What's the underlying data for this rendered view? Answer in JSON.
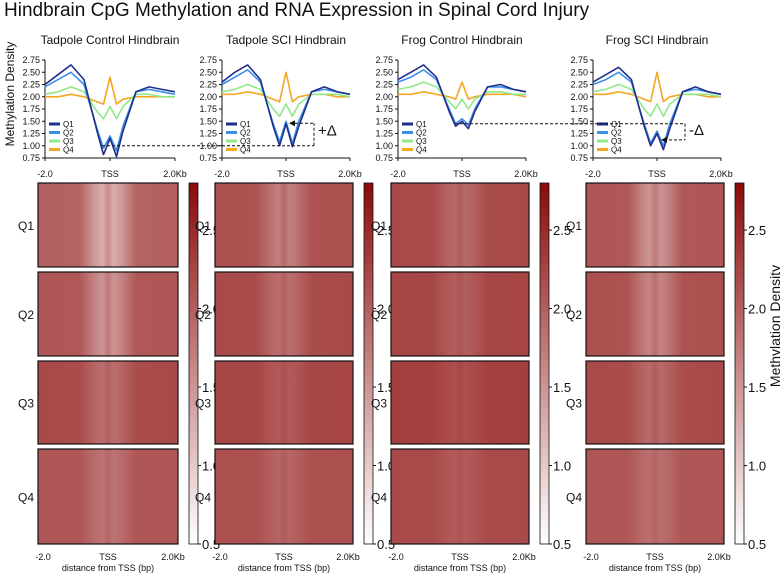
{
  "figure": {
    "title": "Hindbrain CpG Methylation and RNA Expression in Spinal Cord Injury",
    "profile_ylabel": "Methylation Density",
    "colorbar_label": "Methylation Density",
    "xlabel": "distance from TSS (bp)",
    "delta_plus": "+Δ",
    "delta_minus": "-Δ"
  },
  "colors": {
    "Q1": "#1f2f8c",
    "Q2": "#3d8ee6",
    "Q3": "#8fe88a",
    "Q4": "#f5a623",
    "heat_low": "#ffffff",
    "heat_high": "#8b0a0a"
  },
  "chart_data": [
    {
      "type": "line",
      "title": "Tadpole Control Hindbrain",
      "x": [
        -2.0,
        -1.6,
        -1.2,
        -0.8,
        -0.4,
        -0.2,
        0.0,
        0.2,
        0.4,
        0.8,
        1.2,
        1.6,
        2.0
      ],
      "x_ticks": [
        "-2.0",
        "TSS",
        "2.0Kb"
      ],
      "y_ticks": [
        "0.75",
        "1.00",
        "1.25",
        "1.50",
        "1.75",
        "2.00",
        "2.25",
        "2.50",
        "2.75"
      ],
      "ylim": [
        0.75,
        2.75
      ],
      "legend": "bottom-left",
      "series": [
        {
          "name": "Q1",
          "values": [
            2.25,
            2.45,
            2.65,
            2.35,
            1.3,
            0.82,
            1.15,
            0.78,
            1.3,
            2.1,
            2.2,
            2.15,
            2.1
          ]
        },
        {
          "name": "Q2",
          "values": [
            2.2,
            2.35,
            2.5,
            2.25,
            1.35,
            0.95,
            1.2,
            0.9,
            1.4,
            2.1,
            2.15,
            2.1,
            2.05
          ]
        },
        {
          "name": "Q3",
          "values": [
            2.05,
            2.1,
            2.2,
            2.1,
            1.7,
            1.55,
            1.8,
            1.55,
            1.8,
            2.05,
            2.05,
            2.0,
            2.0
          ]
        },
        {
          "name": "Q4",
          "values": [
            2.0,
            2.0,
            2.05,
            2.0,
            1.9,
            1.85,
            2.4,
            1.85,
            1.95,
            2.0,
            2.0,
            2.0,
            2.0
          ]
        }
      ]
    },
    {
      "type": "line",
      "title": "Tadpole SCI Hindbrain",
      "x": [
        -2.0,
        -1.6,
        -1.2,
        -0.8,
        -0.4,
        -0.2,
        0.0,
        0.2,
        0.4,
        0.8,
        1.2,
        1.6,
        2.0
      ],
      "x_ticks": [
        "-2.0",
        "TSS",
        "2.0Kb"
      ],
      "y_ticks": [
        "0.75",
        "1.00",
        "1.25",
        "1.50",
        "1.75",
        "2.00",
        "2.25",
        "2.50",
        "2.75"
      ],
      "ylim": [
        0.75,
        2.75
      ],
      "legend": "bottom-left",
      "series": [
        {
          "name": "Q1",
          "values": [
            2.3,
            2.5,
            2.65,
            2.35,
            1.4,
            1.0,
            1.45,
            0.98,
            1.4,
            2.1,
            2.2,
            2.1,
            2.05
          ]
        },
        {
          "name": "Q2",
          "values": [
            2.25,
            2.4,
            2.55,
            2.3,
            1.45,
            1.08,
            1.5,
            1.05,
            1.5,
            2.1,
            2.15,
            2.1,
            2.05
          ]
        },
        {
          "name": "Q3",
          "values": [
            2.1,
            2.15,
            2.25,
            2.15,
            1.75,
            1.6,
            1.85,
            1.6,
            1.85,
            2.05,
            2.05,
            2.05,
            2.0
          ]
        },
        {
          "name": "Q4",
          "values": [
            2.05,
            2.05,
            2.1,
            2.05,
            1.95,
            1.9,
            2.5,
            1.9,
            2.0,
            2.05,
            2.05,
            2.0,
            2.0
          ]
        }
      ]
    },
    {
      "type": "line",
      "title": "Frog Control Hindbrain",
      "x": [
        -2.0,
        -1.6,
        -1.2,
        -0.8,
        -0.4,
        -0.2,
        0.0,
        0.2,
        0.4,
        0.8,
        1.2,
        1.6,
        2.0
      ],
      "x_ticks": [
        "-2.0",
        "TSS",
        "2.0Kb"
      ],
      "y_ticks": [
        "0.75",
        "1.00",
        "1.25",
        "1.50",
        "1.75",
        "2.00",
        "2.25",
        "2.50",
        "2.75"
      ],
      "ylim": [
        0.75,
        2.75
      ],
      "legend": "bottom-left",
      "series": [
        {
          "name": "Q1",
          "values": [
            2.35,
            2.5,
            2.65,
            2.4,
            1.7,
            1.4,
            1.5,
            1.35,
            1.7,
            2.2,
            2.25,
            2.15,
            2.1
          ]
        },
        {
          "name": "Q2",
          "values": [
            2.3,
            2.4,
            2.55,
            2.35,
            1.75,
            1.45,
            1.55,
            1.42,
            1.75,
            2.2,
            2.2,
            2.15,
            2.1
          ]
        },
        {
          "name": "Q3",
          "values": [
            2.15,
            2.2,
            2.3,
            2.2,
            1.9,
            1.75,
            1.95,
            1.75,
            1.95,
            2.1,
            2.1,
            2.05,
            2.05
          ]
        },
        {
          "name": "Q4",
          "values": [
            2.05,
            2.05,
            2.1,
            2.05,
            2.0,
            1.95,
            2.3,
            1.95,
            2.0,
            2.05,
            2.05,
            2.05,
            2.0
          ]
        }
      ]
    },
    {
      "type": "line",
      "title": "Frog SCI Hindbrain",
      "x": [
        -2.0,
        -1.6,
        -1.2,
        -0.8,
        -0.4,
        -0.2,
        0.0,
        0.2,
        0.4,
        0.8,
        1.2,
        1.6,
        2.0
      ],
      "x_ticks": [
        "-2.0",
        "TSS",
        "2.0Kb"
      ],
      "y_ticks": [
        "0.75",
        "1.00",
        "1.25",
        "1.50",
        "1.75",
        "2.00",
        "2.25",
        "2.50",
        "2.75"
      ],
      "ylim": [
        0.75,
        2.75
      ],
      "legend": "bottom-left",
      "series": [
        {
          "name": "Q1",
          "values": [
            2.3,
            2.45,
            2.6,
            2.35,
            1.4,
            1.0,
            1.25,
            0.92,
            1.35,
            2.1,
            2.2,
            2.1,
            2.05
          ]
        },
        {
          "name": "Q2",
          "values": [
            2.25,
            2.35,
            2.5,
            2.3,
            1.45,
            1.05,
            1.3,
            1.0,
            1.45,
            2.1,
            2.15,
            2.1,
            2.05
          ]
        },
        {
          "name": "Q3",
          "values": [
            2.1,
            2.15,
            2.25,
            2.15,
            1.75,
            1.6,
            1.85,
            1.6,
            1.85,
            2.05,
            2.05,
            2.05,
            2.0
          ]
        },
        {
          "name": "Q4",
          "values": [
            2.05,
            2.05,
            2.1,
            2.05,
            1.95,
            1.9,
            2.5,
            1.9,
            2.0,
            2.05,
            2.05,
            2.0,
            2.0
          ]
        }
      ]
    },
    {
      "type": "heatmap",
      "rows": [
        "Q1",
        "Q2",
        "Q3",
        "Q4"
      ],
      "x_ticks": [
        "-2.0",
        "TSS",
        "2.0Kb"
      ],
      "colorbar_ticks": [
        "2.5",
        "2.0",
        "1.5",
        "1.0",
        "0.5"
      ],
      "colorbar_range": [
        0.5,
        2.8
      ],
      "panels": [
        {
          "row_levels": [
            2.0,
            2.1,
            2.2,
            2.1
          ],
          "tss_dip": [
            0.75,
            0.6,
            0.35,
            0.3
          ]
        },
        {
          "row_levels": [
            2.15,
            2.2,
            2.25,
            2.15
          ],
          "tss_dip": [
            0.45,
            0.35,
            0.2,
            0.2
          ]
        },
        {
          "row_levels": [
            2.2,
            2.25,
            2.3,
            2.2
          ],
          "tss_dip": [
            0.3,
            0.25,
            0.15,
            0.15
          ]
        },
        {
          "row_levels": [
            2.1,
            2.15,
            2.2,
            2.1
          ],
          "tss_dip": [
            0.6,
            0.5,
            0.3,
            0.25
          ]
        }
      ]
    }
  ]
}
